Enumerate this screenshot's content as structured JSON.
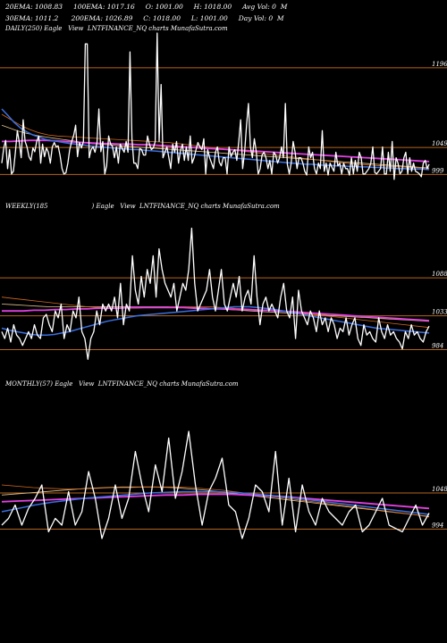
{
  "header": {
    "line1": "20EMA: 1008.83     100EMA: 1017.16     O: 1001.00     H: 1018.00     Avg Vol: 0  M",
    "line2": "30EMA: 1011.2      200EMA: 1026.89     C: 1018.00     L: 1001.00     Day Vol: 0  M"
  },
  "panels": {
    "daily": {
      "title": "DAILY(250) Eagle   View  LNTFINANCE_NQ charts MunafaSutra.com"
    },
    "weekly": {
      "title": "WEEKLY(185                      ) Eagle   View  LNTFINANCE_NQ charts MunafaSutra.com"
    },
    "monthly": {
      "title": "MONTHLY(57) Eagle   View  LNTFINANCE_NQ charts MunafaSutra.com"
    }
  },
  "colors": {
    "background": "#000000",
    "price": "#ffffff",
    "level_line": "#b5651d",
    "ema_blue": "#3a6fe0",
    "ema_magenta": "#e040e0",
    "ema_orange": "#d2691e",
    "ema_tan": "#e3c48f"
  },
  "chart_data": [
    {
      "type": "line",
      "name": "daily",
      "levels": [
        1196,
        1049,
        999
      ],
      "ylim": [
        975,
        1255
      ],
      "price": [
        1020,
        1048,
        1062,
        1010,
        1045,
        1000,
        1005,
        1040,
        1080,
        1058,
        1030,
        1100,
        1060,
        1050,
        1032,
        1025,
        1048,
        1041,
        1060,
        1070,
        1020,
        1055,
        1032,
        1048,
        1040,
        1020,
        1050,
        1058,
        1050,
        1052,
        1034,
        1010,
        1000,
        1002,
        1020,
        1045,
        1060,
        1071,
        1090,
        1032,
        1058,
        1048,
        1060,
        1240,
        1240,
        1030,
        1045,
        1050,
        1040,
        1058,
        1120,
        1041,
        1060,
        1000,
        1015,
        1070,
        1055,
        1051,
        1030,
        1050,
        1020,
        1055,
        1047,
        1040,
        1060,
        1040,
        1225,
        1065,
        1020,
        1020,
        1010,
        1047,
        1045,
        1035,
        1035,
        1070,
        1055,
        1045,
        1048,
        1060,
        1260,
        1060,
        1165,
        1030,
        1040,
        1050,
        1030,
        1010,
        1055,
        1040,
        1060,
        1020,
        1043,
        1055,
        1025,
        1050,
        1025,
        1070,
        1020,
        1030,
        1045,
        1058,
        1050,
        1045,
        1065,
        1000,
        1045,
        1030,
        1020,
        1010,
        1040,
        1050,
        1022,
        1015,
        1030,
        1030,
        1000,
        1050,
        1032,
        1040,
        1045,
        1025,
        1060,
        1100,
        1010,
        1040,
        1090,
        1130,
        1050,
        1030,
        1065,
        1042,
        1000,
        1010,
        1035,
        1040,
        1030,
        1010,
        1025,
        1000,
        1040,
        1035,
        1020,
        1030,
        1050,
        1030,
        1130,
        1018,
        1000,
        1020,
        1060,
        1040,
        1010,
        1030,
        1030,
        1020,
        1005,
        998,
        1050,
        1030,
        1040,
        1010,
        1000,
        1020,
        1010,
        1080,
        1005,
        1020,
        998,
        1020,
        1012,
        1005,
        1040,
        1015,
        1020,
        1000,
        1020,
        1010,
        1010,
        998,
        1030,
        1000,
        1025,
        1005,
        1040,
        1030,
        1000,
        1000,
        1005,
        1010,
        1020,
        1050,
        1003,
        1000,
        1005,
        1010,
        1050,
        1000,
        1000,
        1040,
        1005,
        1060,
        990,
        1030,
        1020,
        1000,
        1005,
        1030,
        1040,
        1000,
        1030,
        1005,
        1020,
        1005,
        1003,
        1000,
        995,
        1020,
        1025,
        1010,
        1018
      ],
      "ema_blue": [
        1120,
        1108,
        1095,
        1085,
        1078,
        1072,
        1068,
        1064,
        1062,
        1060,
        1058,
        1056,
        1055,
        1054,
        1052,
        1051,
        1050,
        1049,
        1048,
        1047,
        1046,
        1045,
        1045,
        1044,
        1043,
        1042,
        1041,
        1040,
        1039,
        1038,
        1037,
        1036,
        1035,
        1034,
        1033,
        1032,
        1031,
        1030,
        1029,
        1028,
        1027,
        1026,
        1025,
        1024,
        1023,
        1022,
        1021,
        1020,
        1019,
        1018,
        1018,
        1017,
        1016,
        1016,
        1015,
        1015,
        1014,
        1014,
        1013,
        1013,
        1012,
        1012,
        1011,
        1011,
        1010,
        1010,
        1009,
        1009,
        1009,
        1008
      ],
      "ema_magenta": [
        1060,
        1060,
        1061,
        1062,
        1062,
        1062,
        1061,
        1060,
        1059,
        1058,
        1057,
        1056,
        1056,
        1055,
        1055,
        1054,
        1054,
        1053,
        1052,
        1051,
        1050,
        1049,
        1048,
        1047,
        1046,
        1045,
        1044,
        1043,
        1042,
        1041,
        1040,
        1039,
        1038,
        1037,
        1036,
        1035,
        1034,
        1033,
        1032,
        1031,
        1030,
        1029,
        1028,
        1027,
        1026,
        1025,
        1024,
        1023
      ],
      "ema_orange": [
        1110,
        1100,
        1090,
        1082,
        1076,
        1072,
        1070,
        1069,
        1068,
        1067,
        1066,
        1065,
        1064,
        1063,
        1062,
        1061,
        1060,
        1059,
        1058,
        1056,
        1054,
        1052,
        1050,
        1048,
        1046,
        1044,
        1042,
        1040,
        1038,
        1036,
        1034,
        1032,
        1030,
        1028,
        1026,
        1024,
        1022,
        1020,
        1018,
        1017,
        1016,
        1015,
        1014,
        1013,
        1012,
        1011,
        1010
      ],
      "ema_tan": [
        1090,
        1085,
        1080,
        1076,
        1073,
        1070,
        1068,
        1066,
        1064,
        1062,
        1060,
        1058,
        1056,
        1055,
        1054,
        1053,
        1052,
        1051,
        1050,
        1049,
        1048,
        1047,
        1046,
        1045,
        1044,
        1043,
        1042,
        1041,
        1040,
        1039,
        1038,
        1037,
        1036,
        1035,
        1034,
        1033,
        1032,
        1031,
        1030,
        1029,
        1028,
        1027,
        1026,
        1025,
        1024,
        1023,
        1022,
        1021,
        1020,
        1019,
        1018,
        1017,
        1016,
        1015,
        1014,
        1013,
        1012,
        1011
      ]
    },
    {
      "type": "line",
      "name": "weekly",
      "levels": [
        1088,
        1033,
        984
      ],
      "ylim": [
        960,
        1180
      ],
      "price": [
        1010,
        1000,
        1015,
        995,
        1020,
        1005,
        1000,
        990,
        1000,
        1010,
        1000,
        1020,
        1005,
        1000,
        1030,
        1035,
        1020,
        1010,
        1040,
        1030,
        1050,
        1000,
        1020,
        1010,
        1040,
        1030,
        1060,
        1010,
        1000,
        970,
        1000,
        1010,
        1040,
        1020,
        1050,
        1040,
        1050,
        1040,
        1060,
        1030,
        1080,
        1020,
        1050,
        1040,
        1120,
        1070,
        1050,
        1090,
        1060,
        1100,
        1080,
        1120,
        1060,
        1130,
        1100,
        1080,
        1070,
        1060,
        1080,
        1040,
        1060,
        1080,
        1070,
        1100,
        1160,
        1080,
        1040,
        1050,
        1060,
        1070,
        1100,
        1060,
        1040,
        1070,
        1100,
        1050,
        1040,
        1060,
        1080,
        1060,
        1090,
        1040,
        1060,
        1070,
        1050,
        1120,
        1060,
        1020,
        1050,
        1060,
        1040,
        1050,
        1040,
        1030,
        1060,
        1080,
        1040,
        1030,
        1060,
        1000,
        1070,
        1040,
        1030,
        1020,
        1040,
        1030,
        1010,
        1040,
        1020,
        1030,
        1010,
        1030,
        1020,
        1000,
        1015,
        1010,
        1030,
        1005,
        1020,
        1030,
        1000,
        990,
        1020,
        1005,
        1010,
        1000,
        995,
        1030,
        1010,
        1000,
        1020,
        1005,
        1010,
        1000,
        995,
        985,
        1010,
        1000,
        1020,
        1005,
        1010,
        1000,
        995,
        1010,
        1018
      ],
      "ema_blue": [
        1015,
        1012,
        1010,
        1008,
        1006,
        1005,
        1005,
        1006,
        1008,
        1010,
        1013,
        1016,
        1019,
        1022,
        1025,
        1027,
        1029,
        1031,
        1033,
        1034,
        1035,
        1036,
        1037,
        1038,
        1039,
        1040,
        1041,
        1042,
        1043,
        1044,
        1045,
        1046,
        1046,
        1046,
        1045,
        1044,
        1043,
        1041,
        1039,
        1037,
        1035,
        1033,
        1031,
        1029,
        1027,
        1025,
        1023,
        1021,
        1019,
        1017,
        1015,
        1014,
        1013,
        1012,
        1011,
        1010,
        1009,
        1008
      ],
      "ema_magenta": [
        1040,
        1040,
        1040,
        1041,
        1041,
        1042,
        1042,
        1043,
        1043,
        1044,
        1044,
        1044,
        1045,
        1045,
        1045,
        1045,
        1045,
        1045,
        1044,
        1044,
        1043,
        1043,
        1042,
        1042,
        1041,
        1041,
        1040,
        1039,
        1038,
        1037,
        1036,
        1035,
        1034,
        1033,
        1032,
        1031,
        1030,
        1029,
        1028,
        1027,
        1026
      ],
      "ema_orange": [
        1060,
        1058,
        1056,
        1054,
        1052,
        1050,
        1048,
        1046,
        1045,
        1044,
        1044,
        1044,
        1045,
        1045,
        1046,
        1046,
        1046,
        1046,
        1045,
        1044,
        1043,
        1042,
        1041,
        1040,
        1038,
        1036,
        1034,
        1032,
        1030,
        1028,
        1026,
        1024,
        1022,
        1020,
        1018,
        1016
      ],
      "ema_tan": [
        1050,
        1049,
        1048,
        1047,
        1046,
        1046,
        1046,
        1046,
        1046,
        1046,
        1046,
        1046,
        1046,
        1046,
        1046,
        1045,
        1045,
        1044,
        1043,
        1042,
        1041,
        1040,
        1039,
        1038,
        1037,
        1036,
        1035,
        1034,
        1033,
        1032,
        1031,
        1030,
        1029,
        1028,
        1027,
        1026,
        1025
      ]
    },
    {
      "type": "line",
      "name": "monthly",
      "levels": [
        1048,
        994
      ],
      "ylim": [
        960,
        1200
      ],
      "price": [
        1000,
        1010,
        1030,
        1000,
        1025,
        1040,
        1060,
        990,
        1010,
        1000,
        1050,
        1000,
        1020,
        1080,
        1040,
        980,
        1010,
        1060,
        1010,
        1040,
        1110,
        1060,
        1020,
        1090,
        1050,
        1130,
        1040,
        1080,
        1140,
        1060,
        1000,
        1050,
        1070,
        1100,
        1030,
        1020,
        980,
        1010,
        1060,
        1050,
        1020,
        1110,
        1000,
        1070,
        990,
        1060,
        1020,
        1000,
        1040,
        1020,
        1010,
        1000,
        1020,
        1030,
        990,
        1000,
        1020,
        1040,
        1000,
        995,
        990,
        1010,
        1030,
        1000,
        1018
      ],
      "ema_blue": [
        1020,
        1025,
        1030,
        1034,
        1037,
        1040,
        1042,
        1044,
        1046,
        1048,
        1049,
        1050,
        1050,
        1050,
        1049,
        1047,
        1045,
        1043,
        1040,
        1037,
        1034,
        1031,
        1028,
        1025,
        1022,
        1019,
        1016
      ],
      "ema_magenta": [
        1035,
        1036,
        1037,
        1038,
        1039,
        1040,
        1041,
        1042,
        1043,
        1044,
        1045,
        1045,
        1046,
        1046,
        1046,
        1045,
        1044,
        1043,
        1041,
        1039,
        1037,
        1035,
        1033,
        1031,
        1029,
        1027,
        1025
      ],
      "ema_orange": [
        1060,
        1058,
        1056,
        1055,
        1054,
        1054,
        1055,
        1056,
        1056,
        1057,
        1057,
        1057,
        1056,
        1054,
        1052,
        1049,
        1046,
        1043,
        1040,
        1037,
        1034,
        1031,
        1028,
        1025,
        1022,
        1019,
        1016,
        1012
      ],
      "ema_tan": [
        1045,
        1047,
        1049,
        1051,
        1053,
        1055,
        1056,
        1057,
        1057,
        1057,
        1056,
        1054,
        1052,
        1049,
        1046,
        1043,
        1040,
        1037,
        1034,
        1031,
        1028,
        1025,
        1022,
        1019,
        1016,
        1013
      ]
    }
  ]
}
